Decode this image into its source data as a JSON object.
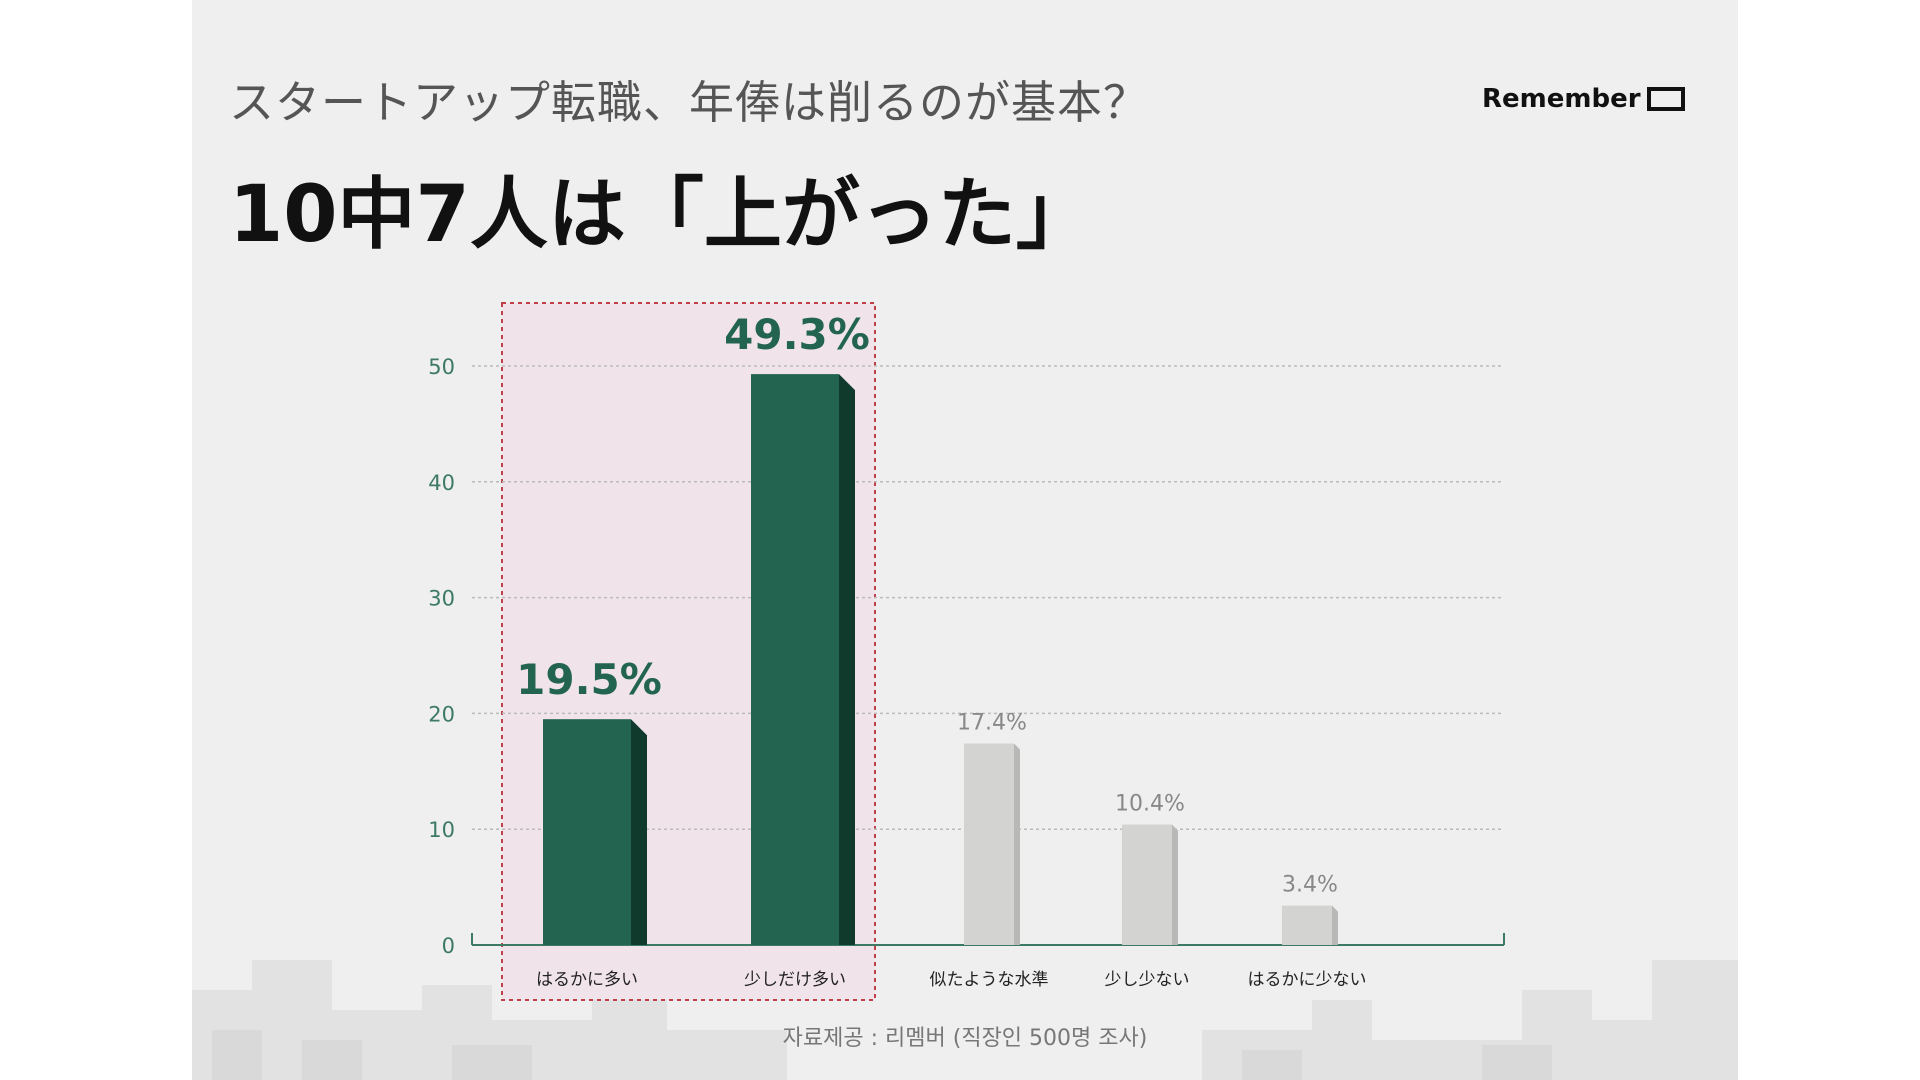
{
  "slide": {
    "subtitle": "スタートアップ転職、年俸は削るのが基本？",
    "headline": "10中7人は「上がった」",
    "logo_text": "Remember",
    "source": "자료제공 : 리멤버 (직장인 500명 조사)"
  },
  "colors": {
    "background": "#efefef",
    "highlight_bar": "#236450",
    "highlight_bar_side": "#0f3a2c",
    "normal_bar": "#d3d3d1",
    "normal_bar_side": "#b8b8b6",
    "highlight_region": "#f0e4ea",
    "highlight_border": "#c0404a",
    "axis": "#3d7a64"
  },
  "chart_data": {
    "type": "bar",
    "categories": [
      "はるかに多い",
      "少しだけ多い",
      "似たような水準",
      "少し少ない",
      "はるかに少ない"
    ],
    "values": [
      19.5,
      49.3,
      17.4,
      10.4,
      3.4
    ],
    "value_labels": [
      "19.5%",
      "49.3%",
      "17.4%",
      "10.4%",
      "3.4%"
    ],
    "highlighted": [
      true,
      true,
      false,
      false,
      false
    ],
    "yticks": [
      0,
      10,
      20,
      30,
      40,
      50
    ],
    "ylim": [
      0,
      50
    ],
    "grid": true,
    "title": "",
    "xlabel": "",
    "ylabel": ""
  }
}
